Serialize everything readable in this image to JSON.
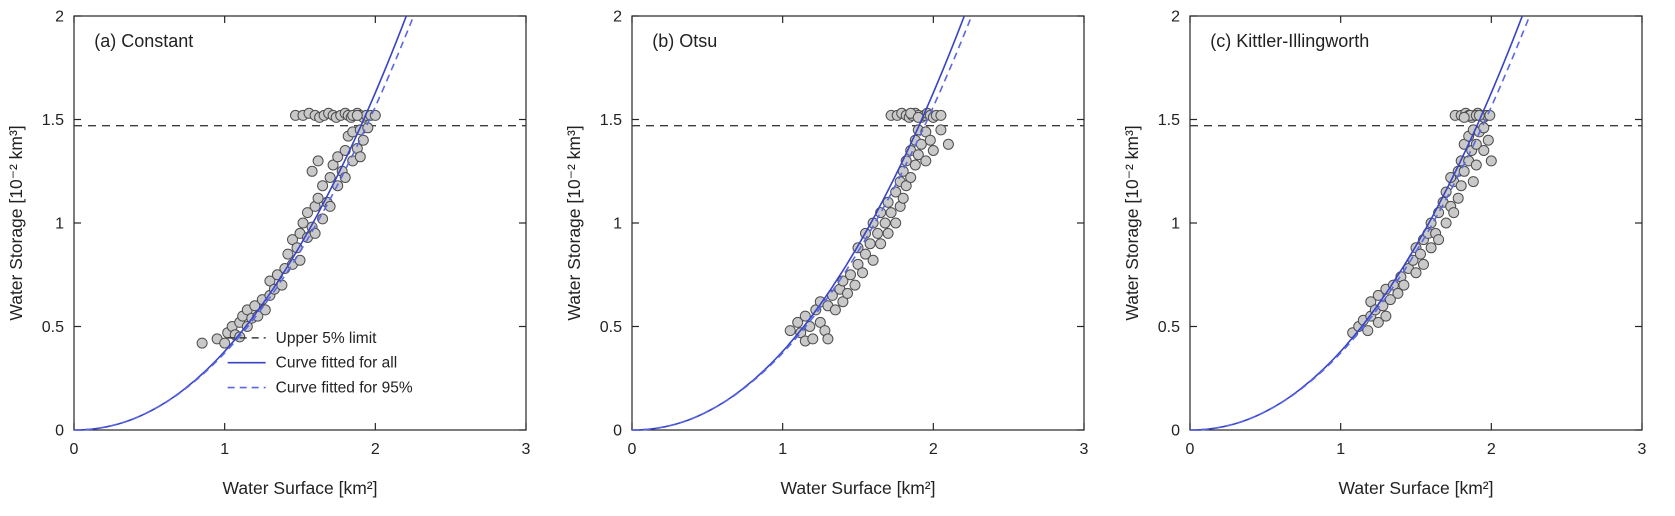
{
  "figure": {
    "background": "#ffffff"
  },
  "colors": {
    "curve_all": "#3744c6",
    "curve_95": "#5b67e2",
    "limit_line": "#3c3c3c",
    "marker_fill": "#c9c9c9",
    "marker_edge": "#4d4d4d",
    "axis": "#262626",
    "text": "#222222"
  },
  "legend": {
    "items": [
      {
        "label": "Upper 5% limit",
        "style": "dashed",
        "color_key": "limit_line"
      },
      {
        "label": "Curve fitted for all",
        "style": "solid",
        "color_key": "curve_all"
      },
      {
        "label": "Curve fitted for 95%",
        "style": "dashed",
        "color_key": "curve_95"
      }
    ]
  },
  "chart_data": [
    {
      "type": "scatter",
      "title": "(a) Constant",
      "xlabel": "Water Surface [km²]",
      "ylabel": "Water Storage [10⁻² km³]",
      "xlim": [
        0,
        3
      ],
      "ylim": [
        0,
        2
      ],
      "xticks": [
        0,
        1,
        2,
        3
      ],
      "yticks": [
        0,
        0.5,
        1,
        1.5,
        2
      ],
      "upper_limit": 1.47,
      "cap_value": 1.52,
      "curve_all": {
        "a": 0.38,
        "b": 2.1
      },
      "curve_95": {
        "a": 0.372,
        "b": 2.07
      },
      "show_legend": true,
      "points": [
        [
          0.85,
          0.42
        ],
        [
          0.95,
          0.44
        ],
        [
          1.0,
          0.42
        ],
        [
          1.02,
          0.47
        ],
        [
          1.05,
          0.5
        ],
        [
          1.07,
          0.46
        ],
        [
          1.1,
          0.52
        ],
        [
          1.1,
          0.45
        ],
        [
          1.12,
          0.55
        ],
        [
          1.15,
          0.5
        ],
        [
          1.15,
          0.58
        ],
        [
          1.18,
          0.54
        ],
        [
          1.2,
          0.6
        ],
        [
          1.22,
          0.55
        ],
        [
          1.25,
          0.63
        ],
        [
          1.27,
          0.58
        ],
        [
          1.3,
          0.65
        ],
        [
          1.3,
          0.72
        ],
        [
          1.33,
          0.68
        ],
        [
          1.35,
          0.75
        ],
        [
          1.38,
          0.7
        ],
        [
          1.4,
          0.78
        ],
        [
          1.42,
          0.85
        ],
        [
          1.45,
          0.8
        ],
        [
          1.45,
          0.92
        ],
        [
          1.48,
          0.88
        ],
        [
          1.5,
          0.95
        ],
        [
          1.5,
          0.82
        ],
        [
          1.52,
          1.0
        ],
        [
          1.55,
          0.93
        ],
        [
          1.55,
          1.05
        ],
        [
          1.58,
          0.98
        ],
        [
          1.6,
          1.08
        ],
        [
          1.6,
          0.95
        ],
        [
          1.62,
          1.12
        ],
        [
          1.65,
          1.02
        ],
        [
          1.65,
          1.18
        ],
        [
          1.68,
          1.1
        ],
        [
          1.7,
          1.22
        ],
        [
          1.7,
          1.08
        ],
        [
          1.72,
          1.28
        ],
        [
          1.75,
          1.18
        ],
        [
          1.75,
          1.32
        ],
        [
          1.78,
          1.25
        ],
        [
          1.8,
          1.35
        ],
        [
          1.8,
          1.22
        ],
        [
          1.82,
          1.42
        ],
        [
          1.85,
          1.3
        ],
        [
          1.85,
          1.44
        ],
        [
          1.88,
          1.36
        ],
        [
          1.9,
          1.45
        ],
        [
          1.9,
          1.32
        ],
        [
          1.92,
          1.4
        ],
        [
          1.95,
          1.46
        ],
        [
          1.62,
          1.3
        ],
        [
          1.58,
          1.25
        ],
        [
          1.47,
          1.52
        ],
        [
          1.52,
          1.52
        ],
        [
          1.56,
          1.53
        ],
        [
          1.6,
          1.52
        ],
        [
          1.63,
          1.51
        ],
        [
          1.66,
          1.52
        ],
        [
          1.69,
          1.53
        ],
        [
          1.72,
          1.52
        ],
        [
          1.74,
          1.51
        ],
        [
          1.77,
          1.52
        ],
        [
          1.8,
          1.53
        ],
        [
          1.82,
          1.52
        ],
        [
          1.84,
          1.51
        ],
        [
          1.86,
          1.52
        ],
        [
          1.88,
          1.53
        ],
        [
          1.9,
          1.52
        ],
        [
          1.92,
          1.51
        ],
        [
          1.94,
          1.52
        ],
        [
          1.97,
          1.52
        ],
        [
          2.0,
          1.52
        ],
        [
          1.85,
          1.52
        ],
        [
          1.88,
          1.52
        ]
      ]
    },
    {
      "type": "scatter",
      "title": "(b) Otsu",
      "xlabel": "Water Surface [km²]",
      "ylabel": "Water Storage [10⁻² km³]",
      "xlim": [
        0,
        3
      ],
      "ylim": [
        0,
        2
      ],
      "xticks": [
        0,
        1,
        2,
        3
      ],
      "yticks": [
        0,
        0.5,
        1,
        1.5,
        2
      ],
      "upper_limit": 1.47,
      "cap_value": 1.52,
      "curve_all": {
        "a": 0.38,
        "b": 2.1
      },
      "curve_95": {
        "a": 0.372,
        "b": 2.07
      },
      "show_legend": false,
      "points": [
        [
          1.05,
          0.48
        ],
        [
          1.1,
          0.52
        ],
        [
          1.12,
          0.47
        ],
        [
          1.15,
          0.55
        ],
        [
          1.15,
          0.43
        ],
        [
          1.18,
          0.5
        ],
        [
          1.2,
          0.44
        ],
        [
          1.22,
          0.58
        ],
        [
          1.25,
          0.52
        ],
        [
          1.25,
          0.62
        ],
        [
          1.28,
          0.48
        ],
        [
          1.3,
          0.6
        ],
        [
          1.3,
          0.44
        ],
        [
          1.33,
          0.65
        ],
        [
          1.35,
          0.58
        ],
        [
          1.38,
          0.68
        ],
        [
          1.4,
          0.62
        ],
        [
          1.4,
          0.72
        ],
        [
          1.43,
          0.66
        ],
        [
          1.45,
          0.75
        ],
        [
          1.48,
          0.7
        ],
        [
          1.5,
          0.8
        ],
        [
          1.5,
          0.88
        ],
        [
          1.53,
          0.76
        ],
        [
          1.55,
          0.85
        ],
        [
          1.55,
          0.95
        ],
        [
          1.58,
          0.9
        ],
        [
          1.6,
          0.82
        ],
        [
          1.6,
          1.0
        ],
        [
          1.63,
          0.95
        ],
        [
          1.65,
          1.05
        ],
        [
          1.65,
          0.9
        ],
        [
          1.68,
          1.0
        ],
        [
          1.7,
          1.1
        ],
        [
          1.7,
          0.95
        ],
        [
          1.72,
          1.05
        ],
        [
          1.75,
          1.15
        ],
        [
          1.75,
          1.0
        ],
        [
          1.78,
          1.2
        ],
        [
          1.78,
          1.08
        ],
        [
          1.8,
          1.25
        ],
        [
          1.8,
          1.12
        ],
        [
          1.82,
          1.3
        ],
        [
          1.82,
          1.18
        ],
        [
          1.85,
          1.35
        ],
        [
          1.85,
          1.22
        ],
        [
          1.88,
          1.4
        ],
        [
          1.88,
          1.28
        ],
        [
          1.9,
          1.45
        ],
        [
          1.9,
          1.33
        ],
        [
          1.92,
          1.38
        ],
        [
          1.95,
          1.44
        ],
        [
          1.95,
          1.3
        ],
        [
          1.98,
          1.4
        ],
        [
          2.0,
          1.35
        ],
        [
          2.05,
          1.45
        ],
        [
          2.1,
          1.38
        ],
        [
          1.72,
          1.52
        ],
        [
          1.76,
          1.52
        ],
        [
          1.79,
          1.53
        ],
        [
          1.82,
          1.52
        ],
        [
          1.84,
          1.51
        ],
        [
          1.86,
          1.52
        ],
        [
          1.88,
          1.53
        ],
        [
          1.9,
          1.52
        ],
        [
          1.92,
          1.51
        ],
        [
          1.94,
          1.52
        ],
        [
          1.96,
          1.53
        ],
        [
          1.98,
          1.52
        ],
        [
          2.0,
          1.51
        ],
        [
          2.02,
          1.52
        ],
        [
          1.85,
          1.53
        ],
        [
          1.9,
          1.51
        ],
        [
          2.05,
          1.52
        ]
      ]
    },
    {
      "type": "scatter",
      "title": "(c) Kittler-Illingworth",
      "xlabel": "Water Surface [km²]",
      "ylabel": "Water Storage [10⁻² km³]",
      "xlim": [
        0,
        3
      ],
      "ylim": [
        0,
        2
      ],
      "xticks": [
        0,
        1,
        2,
        3
      ],
      "yticks": [
        0,
        0.5,
        1,
        1.5,
        2
      ],
      "upper_limit": 1.47,
      "cap_value": 1.52,
      "curve_all": {
        "a": 0.38,
        "b": 2.1
      },
      "curve_95": {
        "a": 0.372,
        "b": 2.07
      },
      "show_legend": false,
      "points": [
        [
          1.08,
          0.47
        ],
        [
          1.12,
          0.5
        ],
        [
          1.15,
          0.53
        ],
        [
          1.18,
          0.48
        ],
        [
          1.2,
          0.55
        ],
        [
          1.2,
          0.62
        ],
        [
          1.23,
          0.58
        ],
        [
          1.25,
          0.52
        ],
        [
          1.25,
          0.65
        ],
        [
          1.28,
          0.6
        ],
        [
          1.3,
          0.55
        ],
        [
          1.3,
          0.68
        ],
        [
          1.33,
          0.63
        ],
        [
          1.35,
          0.7
        ],
        [
          1.38,
          0.66
        ],
        [
          1.4,
          0.74
        ],
        [
          1.42,
          0.7
        ],
        [
          1.45,
          0.78
        ],
        [
          1.48,
          0.82
        ],
        [
          1.5,
          0.76
        ],
        [
          1.5,
          0.88
        ],
        [
          1.53,
          0.85
        ],
        [
          1.55,
          0.92
        ],
        [
          1.55,
          0.8
        ],
        [
          1.58,
          0.95
        ],
        [
          1.6,
          0.88
        ],
        [
          1.6,
          1.0
        ],
        [
          1.63,
          0.95
        ],
        [
          1.65,
          1.05
        ],
        [
          1.65,
          0.92
        ],
        [
          1.68,
          1.1
        ],
        [
          1.7,
          1.0
        ],
        [
          1.7,
          1.15
        ],
        [
          1.73,
          1.08
        ],
        [
          1.75,
          1.2
        ],
        [
          1.75,
          1.05
        ],
        [
          1.78,
          1.12
        ],
        [
          1.78,
          1.25
        ],
        [
          1.8,
          1.18
        ],
        [
          1.8,
          1.3
        ],
        [
          1.82,
          1.25
        ],
        [
          1.82,
          1.38
        ],
        [
          1.85,
          1.3
        ],
        [
          1.85,
          1.42
        ],
        [
          1.87,
          1.35
        ],
        [
          1.88,
          1.45
        ],
        [
          1.9,
          1.38
        ],
        [
          1.9,
          1.28
        ],
        [
          1.92,
          1.44
        ],
        [
          1.95,
          1.35
        ],
        [
          1.95,
          1.46
        ],
        [
          1.98,
          1.4
        ],
        [
          2.0,
          1.3
        ],
        [
          1.88,
          1.2
        ],
        [
          1.73,
          1.22
        ],
        [
          1.76,
          1.52
        ],
        [
          1.8,
          1.52
        ],
        [
          1.83,
          1.53
        ],
        [
          1.85,
          1.52
        ],
        [
          1.87,
          1.51
        ],
        [
          1.89,
          1.52
        ],
        [
          1.91,
          1.53
        ],
        [
          1.93,
          1.52
        ],
        [
          1.95,
          1.51
        ],
        [
          1.97,
          1.52
        ],
        [
          1.99,
          1.52
        ],
        [
          1.86,
          1.52
        ],
        [
          1.9,
          1.52
        ],
        [
          1.92,
          1.52
        ],
        [
          1.82,
          1.51
        ]
      ]
    }
  ]
}
